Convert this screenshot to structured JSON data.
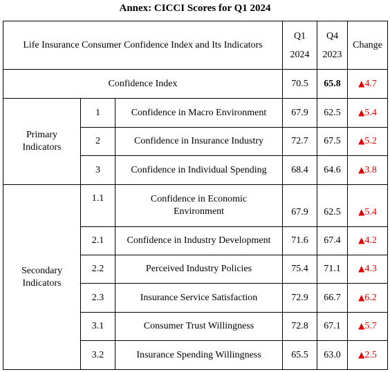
{
  "title": "Annex: CICCI Scores for Q1 2024",
  "header": {
    "label": "Life Insurance Consumer Confidence Index and Its Indicators",
    "q1_line1": "Q1",
    "q1_line2": "2024",
    "q4_line1": "Q4",
    "q4_line2": "2023",
    "change": "Change"
  },
  "index_row": {
    "name": "Confidence Index",
    "q1": "70.5",
    "q4": "65.8",
    "change": "4.7"
  },
  "groups": {
    "primary_line1": "Primary",
    "primary_line2": "Indicators",
    "secondary_line1": "Secondary",
    "secondary_line2": "Indicators"
  },
  "rows": [
    {
      "num": "1",
      "name": "Confidence in Macro Environment",
      "q1": "67.9",
      "q4": "62.5",
      "change": "5.4"
    },
    {
      "num": "2",
      "name": "Confidence in Insurance Industry",
      "q1": "72.7",
      "q4": "67.5",
      "change": "5.2"
    },
    {
      "num": "3",
      "name": "Confidence in Individual Spending",
      "q1": "68.4",
      "q4": "64.6",
      "change": "3.8"
    },
    {
      "num": "1.1",
      "name_line1": "Confidence in Economic",
      "name_line2": "Environment",
      "q1": "67.9",
      "q4": "62.5",
      "change": "5.4"
    },
    {
      "num": "2.1",
      "name": "Confidence in Industry Development",
      "q1": "71.6",
      "q4": "67.4",
      "change": "4.2"
    },
    {
      "num": "2.2",
      "name": "Perceived Industry Policies",
      "q1": "75.4",
      "q4": "71.1",
      "change": "4.3"
    },
    {
      "num": "2.3",
      "name": "Insurance Service Satisfaction",
      "q1": "72.9",
      "q4": "66.7",
      "change": "6.2"
    },
    {
      "num": "3.1",
      "name": "Consumer Trust Willingness",
      "q1": "72.8",
      "q4": "67.1",
      "change": "5.7"
    },
    {
      "num": "3.2",
      "name": "Insurance Spending Willingness",
      "q1": "65.5",
      "q4": "63.0",
      "change": "2.5"
    }
  ],
  "icons": {
    "increase": "up-triangle-icon"
  },
  "colors": {
    "increase": "#e00000"
  }
}
